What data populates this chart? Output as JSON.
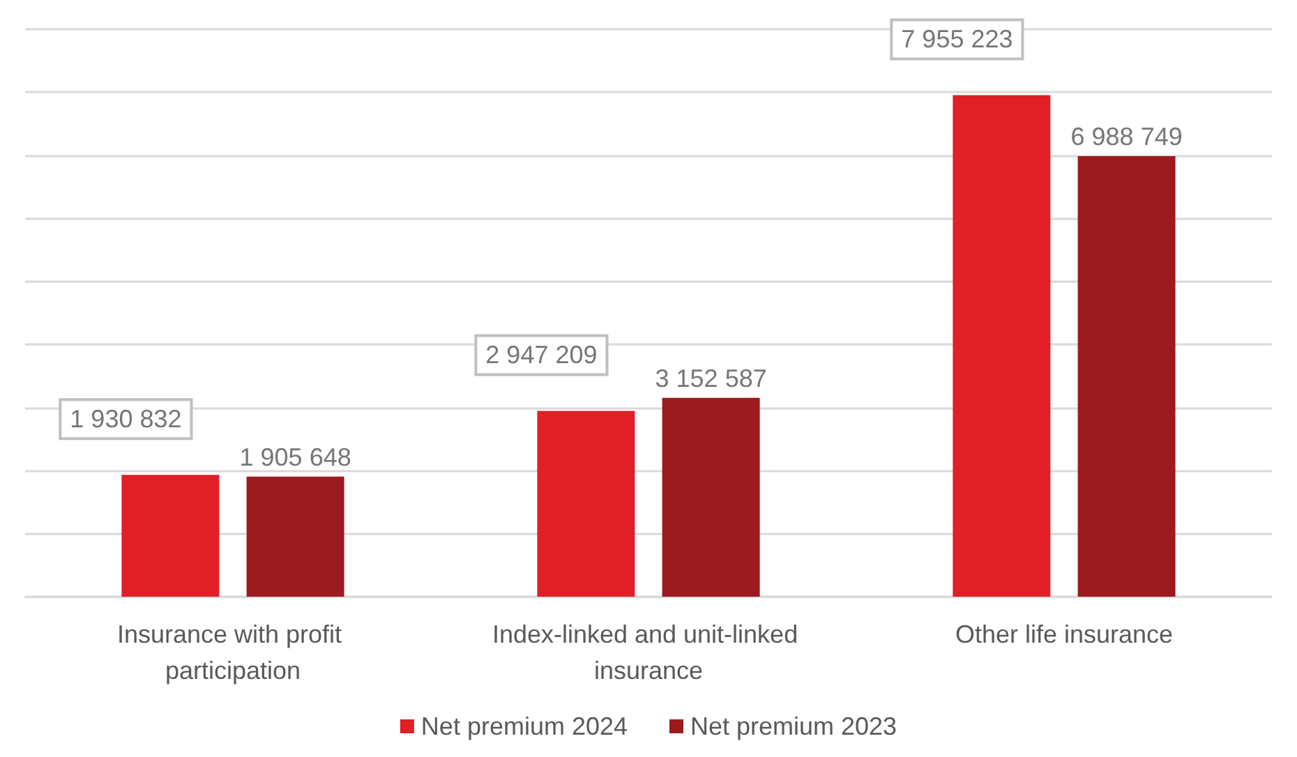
{
  "chart_data": {
    "type": "bar",
    "categories": [
      "Insurance with profit participation",
      "Index-linked and unit-linked insurance",
      "Other life insurance"
    ],
    "series": [
      {
        "name": "Net premium 2024",
        "color": "#e01f26",
        "values": [
          1930832,
          2947209,
          7955223
        ]
      },
      {
        "name": "Net premium 2023",
        "color": "#9b1b1f",
        "values": [
          1905648,
          3152587,
          6988749
        ]
      }
    ],
    "data_labels": true,
    "ylim": [
      0,
      9000000
    ],
    "yticks": [
      {
        "value": 0,
        "label": null
      },
      {
        "value": 1000000,
        "label": null
      },
      {
        "value": 2000000,
        "label": null
      },
      {
        "value": 3000000,
        "label": null
      },
      {
        "value": 4000000,
        "label": null
      },
      {
        "value": 5000000,
        "label": null
      },
      {
        "value": 6000000,
        "label": null
      },
      {
        "value": 7000000,
        "label": null
      },
      {
        "value": 8000000,
        "label": null
      },
      {
        "value": 9000000,
        "label": null
      }
    ],
    "tick_labels": "x",
    "grid": "y",
    "legend": "bottom"
  }
}
